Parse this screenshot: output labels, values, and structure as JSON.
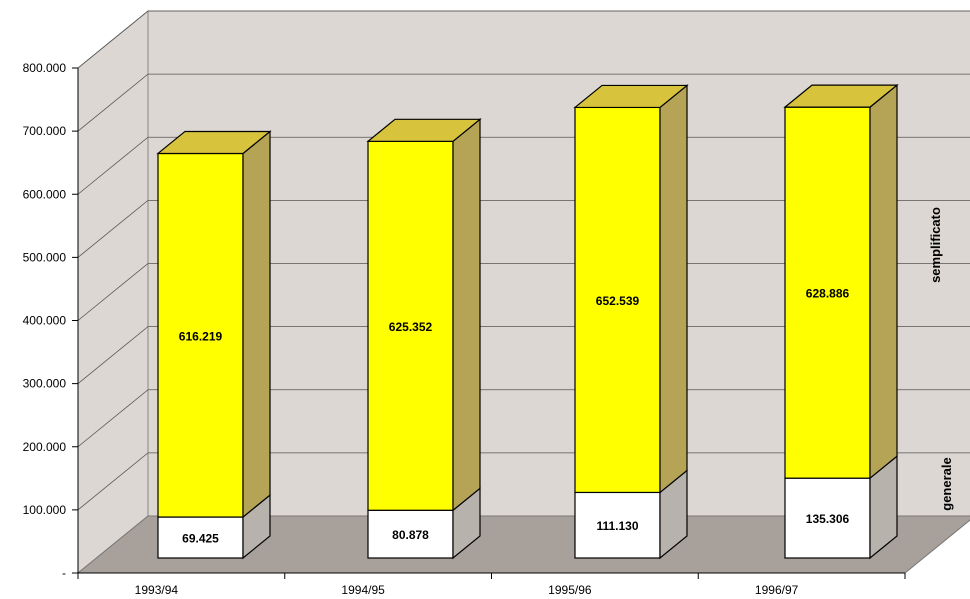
{
  "chart_data": {
    "type": "bar",
    "stacked": true,
    "three_d": true,
    "categories": [
      "1993/94",
      "1994/95",
      "1995/96",
      "1996/97"
    ],
    "series": [
      {
        "name": "generale",
        "values": [
          69425,
          80878,
          111130,
          135306
        ],
        "labels": [
          "69.425",
          "80.878",
          "111.130",
          "135.306"
        ],
        "color": "#ffffff"
      },
      {
        "name": "semplificato",
        "values": [
          616219,
          625352,
          652539,
          628886
        ],
        "labels": [
          "616.219",
          "625.352",
          "652.539",
          "628.886"
        ],
        "color": "#ffff00"
      }
    ],
    "y_ticks": [
      "-",
      "100.000",
      "200.000",
      "300.000",
      "400.000",
      "500.000",
      "600.000",
      "700.000",
      "800.000"
    ],
    "ylim": [
      0,
      800000
    ],
    "grid": true,
    "wall_color": "#dcd7d2",
    "floor_color": "#a8a09b",
    "side_colors": {
      "generale": "#b8b2ac",
      "semplificato": "#b5a455"
    },
    "top_color": "#d8c33c"
  }
}
